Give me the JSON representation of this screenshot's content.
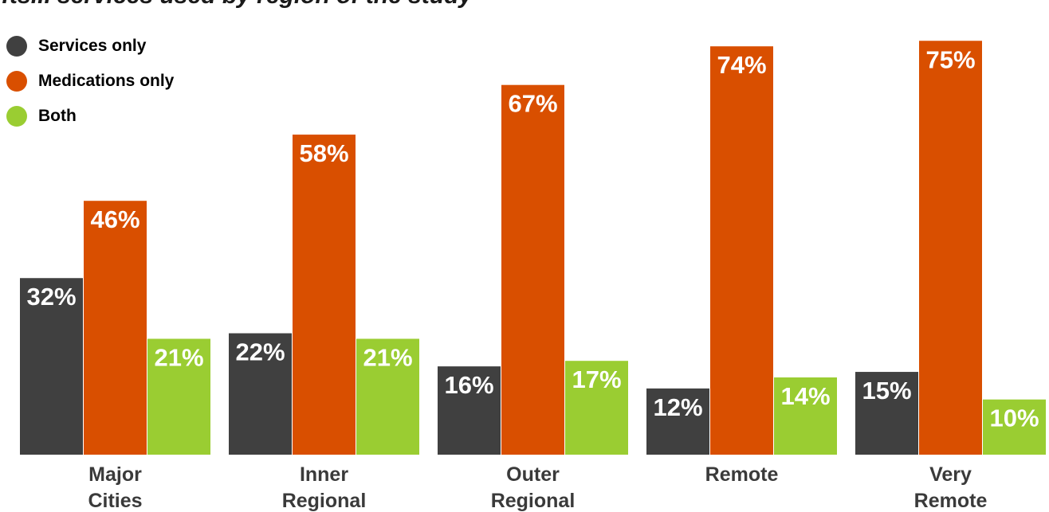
{
  "chart_data": {
    "type": "bar",
    "title": "…ts... services used by region of the study",
    "categories": [
      [
        "Major",
        "Cities"
      ],
      [
        "Inner",
        "Regional"
      ],
      [
        "Outer",
        "Regional"
      ],
      [
        "Remote"
      ],
      [
        "Very",
        "Remote"
      ]
    ],
    "series": [
      {
        "name": "Services only",
        "color": "#404040",
        "values": [
          32,
          22,
          16,
          12,
          15
        ]
      },
      {
        "name": "Medications only",
        "color": "#d94f00",
        "values": [
          46,
          58,
          67,
          74,
          75
        ]
      },
      {
        "name": "Both",
        "color": "#9acd32",
        "values": [
          21,
          21,
          17,
          14,
          10
        ]
      }
    ],
    "value_suffix": "%",
    "ylim": [
      0,
      80
    ],
    "legend_position": "top-left",
    "grid": false
  }
}
